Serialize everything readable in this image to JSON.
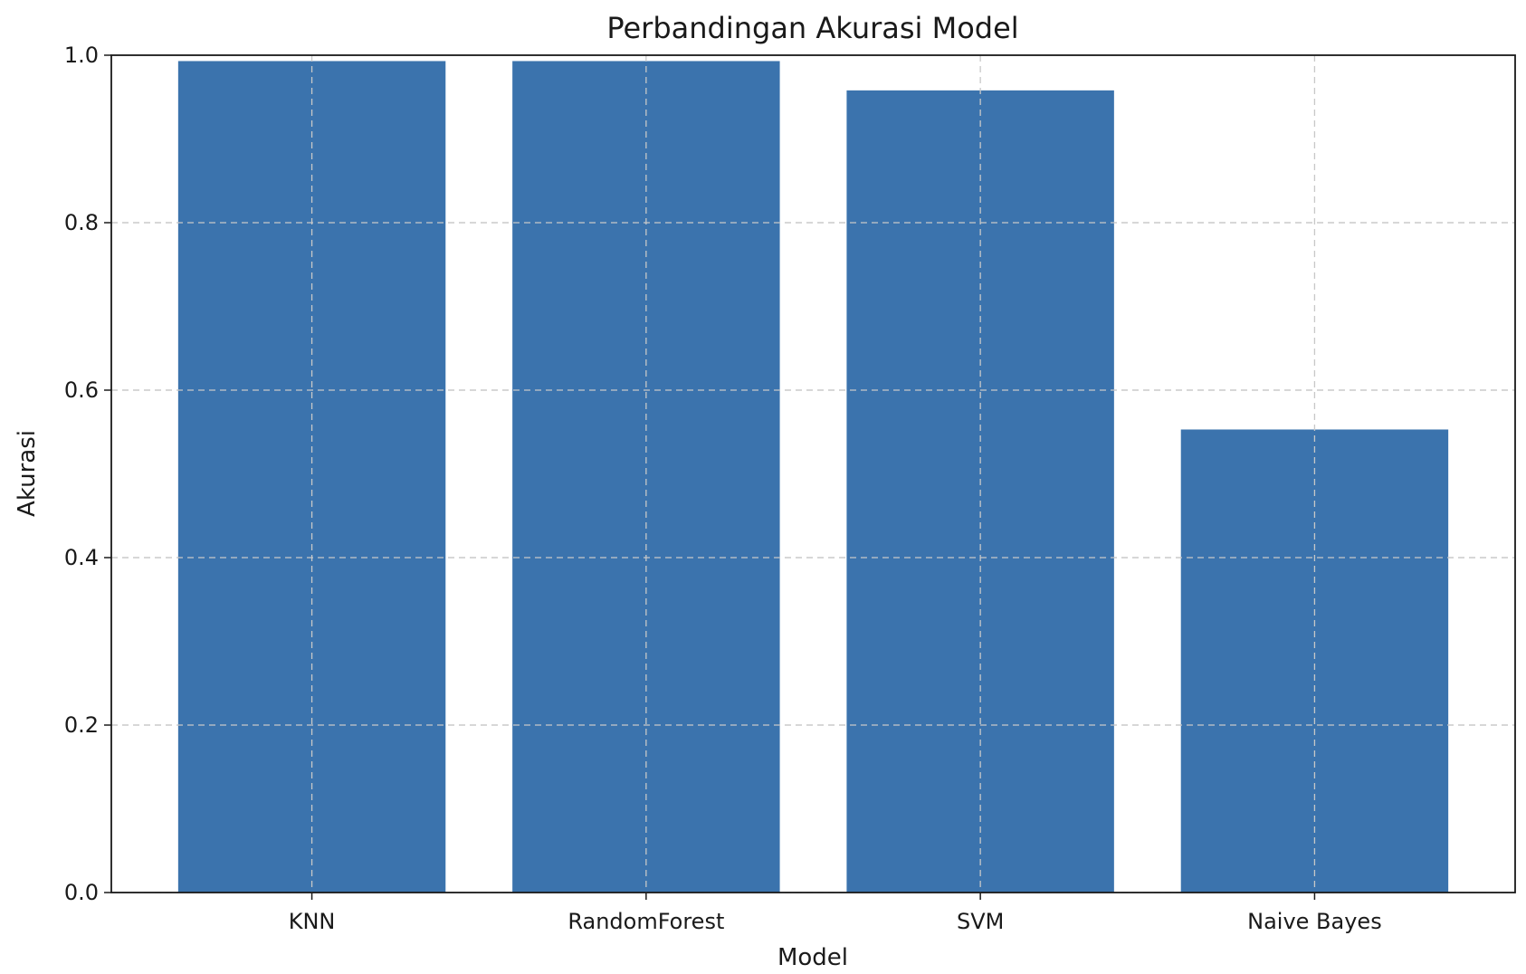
{
  "chart_data": {
    "type": "bar",
    "title": "Perbandingan Akurasi Model",
    "xlabel": "Model",
    "ylabel": "Akurasi",
    "categories": [
      "KNN",
      "RandomForest",
      "SVM",
      "Naive Bayes"
    ],
    "values": [
      0.993,
      0.993,
      0.958,
      0.553
    ],
    "ylim": [
      0,
      1.0
    ],
    "yticks": [
      "0.0",
      "0.2",
      "0.4",
      "0.6",
      "0.8",
      "1.0"
    ],
    "grid": true,
    "bar_color": "#3b73ad"
  }
}
